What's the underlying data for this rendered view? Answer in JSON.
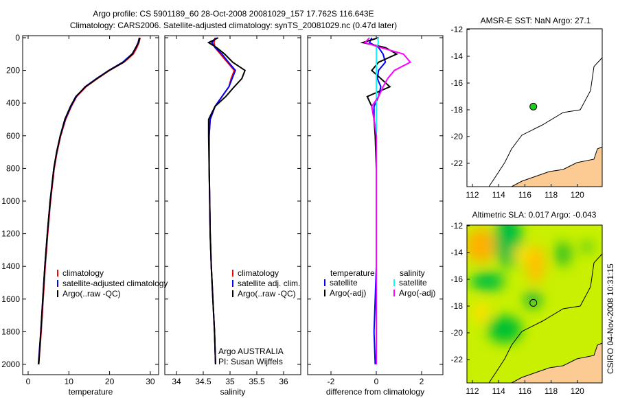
{
  "chart_data": [
    {
      "type": "line",
      "title_line1": "Argo profile: CS 5901189_60 28-Oct-2008 20081029_157 17.762S 116.643E",
      "title_line2": "Climatology: CARS2006. Satellite-adjusted climatology: synTS_20081029.nc (0.47d later)",
      "xlabel": "temperature",
      "xlim": [
        -2,
        32
      ],
      "xticks": [
        0,
        10,
        20,
        30
      ],
      "ylim": [
        0,
        2000
      ],
      "yticks": [
        0,
        200,
        400,
        600,
        800,
        1000,
        1200,
        1400,
        1600,
        1800,
        2000
      ],
      "depth": [
        0,
        30,
        60,
        100,
        150,
        200,
        250,
        300,
        360,
        420,
        500,
        600,
        700,
        800,
        1000,
        1200,
        1400,
        1600,
        1800,
        2000
      ],
      "series": [
        {
          "name": "climatology",
          "color": "#ff0000",
          "values": [
            27.5,
            27.2,
            26.7,
            25.8,
            23.5,
            20.0,
            17.0,
            14.2,
            11.9,
            10.6,
            9.2,
            8.0,
            7.1,
            6.4,
            5.5,
            4.8,
            4.2,
            3.7,
            3.2,
            2.6
          ]
        },
        {
          "name": "satellite-adjusted climatology",
          "color": "#0000ff",
          "values": [
            27.3,
            27.0,
            26.5,
            25.5,
            23.2,
            19.8,
            16.8,
            14.0,
            11.8,
            10.5,
            9.1,
            7.9,
            7.0,
            6.3,
            5.4,
            4.7,
            4.1,
            3.6,
            3.1,
            2.5
          ]
        },
        {
          "name": "Argo(..raw -QC)",
          "color": "#000000",
          "values": [
            27.4,
            27.1,
            26.4,
            25.6,
            23.4,
            19.9,
            16.9,
            14.1,
            11.7,
            10.4,
            9.0,
            7.9,
            7.0,
            6.3,
            5.4,
            4.7,
            4.1,
            3.6,
            3.1,
            2.6
          ]
        }
      ]
    },
    {
      "type": "line",
      "xlabel": "salinity",
      "xlim": [
        33.85,
        36.05
      ],
      "xticks": [
        "34",
        "34.5",
        "35",
        "35.5",
        "36"
      ],
      "ylim": [
        0,
        2000
      ],
      "depth": [
        0,
        30,
        60,
        100,
        150,
        200,
        250,
        300,
        360,
        420,
        500,
        600,
        800,
        1000,
        1200,
        1400,
        1600,
        1800,
        2000
      ],
      "series": [
        {
          "name": "climatology",
          "color": "#ff0000",
          "values": [
            34.72,
            34.7,
            34.72,
            34.82,
            34.95,
            35.08,
            35.02,
            34.98,
            34.85,
            34.72,
            34.63,
            34.61,
            34.61,
            34.62,
            34.63,
            34.65,
            34.68,
            34.71,
            34.73
          ]
        },
        {
          "name": "satellite adj. clim.",
          "color": "#0000ff",
          "values": [
            34.75,
            34.66,
            34.72,
            34.85,
            34.97,
            35.1,
            35.04,
            34.98,
            34.85,
            34.72,
            34.63,
            34.61,
            34.61,
            34.62,
            34.63,
            34.65,
            34.68,
            34.71,
            34.73
          ]
        },
        {
          "name": "Argo(..raw -QC)",
          "color": "#000000",
          "values": [
            34.78,
            34.6,
            34.75,
            34.9,
            35.05,
            35.28,
            35.22,
            35.08,
            34.92,
            34.72,
            34.6,
            34.6,
            34.61,
            34.62,
            34.63,
            34.65,
            34.68,
            34.71,
            34.73
          ]
        }
      ],
      "annotation": [
        "Argo AUSTRALIA",
        "PI: Susan Wijffels"
      ]
    },
    {
      "type": "line",
      "xlabel": "difference from climatology",
      "xlim": [
        -3,
        3
      ],
      "xticks": [
        "-2",
        "0",
        "2"
      ],
      "ylim": [
        0,
        2000
      ],
      "depth": [
        0,
        30,
        60,
        100,
        150,
        200,
        250,
        300,
        360,
        420,
        500,
        600,
        800,
        1000,
        1200,
        1400,
        1600,
        1800,
        2000
      ],
      "series": [
        {
          "name": "temperature satellite",
          "color": "#0000ff",
          "values": [
            -0.2,
            -0.3,
            0.1,
            0.3,
            0.4,
            0.1,
            0.05,
            0.2,
            0.1,
            -0.1,
            -0.1,
            0,
            0,
            0,
            0,
            0,
            -0.05,
            -0.1,
            -0.05
          ]
        },
        {
          "name": "temperature Argo(-adj)",
          "color": "#000000",
          "values": [
            0.1,
            -0.6,
            0.4,
            0.9,
            0.1,
            -0.2,
            0.2,
            0.6,
            -0.4,
            -0.2,
            -0.1,
            -0.05,
            0,
            0,
            0,
            0,
            0,
            0,
            0
          ]
        },
        {
          "name": "salinity satellite",
          "color": "#00ffff",
          "values": [
            0.05,
            0.1,
            0,
            0,
            0,
            0,
            0,
            0,
            0,
            0,
            0,
            0,
            0,
            0,
            0,
            0,
            0,
            0,
            0
          ]
        },
        {
          "name": "salinity Argo(-adj)",
          "color": "#ff00ff",
          "values": [
            -0.3,
            -0.5,
            0.2,
            1.2,
            1.5,
            0.8,
            0.5,
            0.3,
            0.1,
            -0.2,
            -0.1,
            0,
            0,
            0,
            0,
            0,
            0,
            0,
            0
          ]
        }
      ],
      "legend": {
        "temperature_heading": "temperature",
        "salinity_heading": "salinity",
        "satellite": "satellite",
        "argo": "Argo(-adj)"
      }
    },
    {
      "type": "map",
      "title": "AMSR-E SST: NaN Argo: 27.1",
      "xticks": [
        "112",
        "114",
        "116",
        "118",
        "120"
      ],
      "yticks": [
        "-12",
        "-14",
        "-16",
        "-18",
        "-20",
        "-22"
      ],
      "argo_point": [
        116.643,
        -17.762
      ]
    },
    {
      "type": "heatmap",
      "title": "Altimetric SLA: 0.017 Argo: -0.043",
      "xticks": [
        "112",
        "114",
        "116",
        "118",
        "120"
      ],
      "yticks": [
        "-12",
        "-14",
        "-16",
        "-18",
        "-20",
        "-22"
      ],
      "argo_point": [
        116.643,
        -17.762
      ]
    }
  ],
  "footer": "CSIRO 04-Nov-2008 10:31:15"
}
